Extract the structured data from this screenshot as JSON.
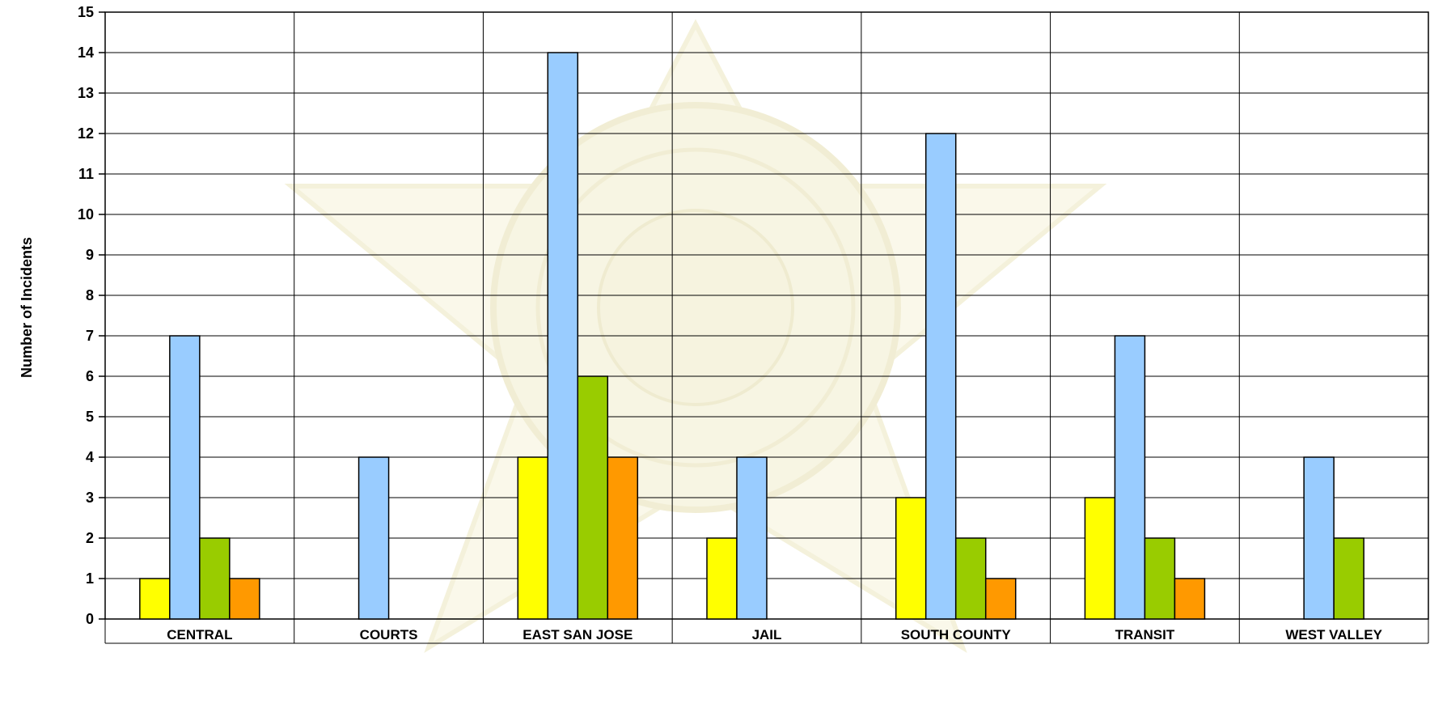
{
  "chart_data": {
    "type": "bar",
    "title": "",
    "xlabel": "",
    "ylabel": "Number of Incidents",
    "ylim": [
      0,
      15
    ],
    "y_ticks": [
      0,
      1,
      2,
      3,
      4,
      5,
      6,
      7,
      8,
      9,
      10,
      11,
      12,
      13,
      14,
      15
    ],
    "grid": "on",
    "legend": "none",
    "background_watermark": "sheriff-star-badge",
    "categories": [
      "CENTRAL",
      "COURTS",
      "EAST SAN JOSE",
      "JAIL",
      "SOUTH COUNTY",
      "TRANSIT",
      "WEST VALLEY"
    ],
    "series": [
      {
        "color": "#FFFF00",
        "values": [
          1,
          0,
          4,
          2,
          3,
          3,
          0
        ]
      },
      {
        "color": "#99CCFF",
        "values": [
          7,
          4,
          14,
          4,
          12,
          7,
          4
        ]
      },
      {
        "color": "#99CC00",
        "values": [
          2,
          0,
          6,
          0,
          2,
          2,
          2
        ]
      },
      {
        "color": "#FF9900",
        "values": [
          1,
          0,
          4,
          0,
          1,
          1,
          0
        ]
      }
    ]
  }
}
